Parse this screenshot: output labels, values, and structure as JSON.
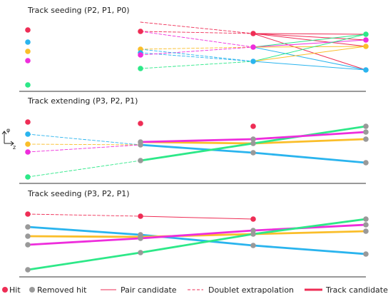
{
  "colors": {
    "red": "#ee2d55",
    "cyan": "#2ab4ee",
    "orange": "#fabe2a",
    "magenta": "#ee2ddc",
    "green": "#2de888",
    "gray": "#999999",
    "divider": "#333333"
  },
  "axis": {
    "y_label": "φ",
    "x_label": "z"
  },
  "legend": {
    "hit": "Hit",
    "removed_hit": "Removed hit",
    "pair_candidate": "Pair candidate",
    "doublet_extrapolation": "Doublet extrapolation",
    "track_candidate": "Track candidate"
  },
  "panels": [
    {
      "title": "Track seeding (P2, P1, P0)",
      "hits": [
        {
          "layer": 0,
          "color": "red"
        },
        {
          "layer": 0,
          "color": "cyan"
        },
        {
          "layer": 0,
          "color": "orange"
        },
        {
          "layer": 0,
          "color": "magenta"
        },
        {
          "layer": 0,
          "color": "green"
        },
        {
          "layer": 1,
          "color": "red"
        },
        {
          "layer": 1,
          "color": "orange"
        },
        {
          "layer": 1,
          "color": "cyan"
        },
        {
          "layer": 1,
          "color": "magenta"
        },
        {
          "layer": 1,
          "color": "green"
        },
        {
          "layer": 2,
          "color": "red"
        },
        {
          "layer": 2,
          "color": "magenta"
        },
        {
          "layer": 2,
          "color": "cyan"
        },
        {
          "layer": 3,
          "color": "green"
        },
        {
          "layer": 3,
          "color": "magenta"
        },
        {
          "layer": 3,
          "color": "orange"
        },
        {
          "layer": 3,
          "color": "cyan"
        }
      ]
    },
    {
      "title": "Track extending (P3, P2, P1)",
      "hits": [
        {
          "layer": 0,
          "color": "red"
        },
        {
          "layer": 0,
          "color": "cyan"
        },
        {
          "layer": 0,
          "color": "orange"
        },
        {
          "layer": 0,
          "color": "magenta"
        },
        {
          "layer": 0,
          "color": "green"
        },
        {
          "layer": 1,
          "color": "red"
        },
        {
          "layer": 1,
          "color": "gray"
        },
        {
          "layer": 1,
          "color": "gray"
        },
        {
          "layer": 1,
          "color": "gray"
        },
        {
          "layer": 2,
          "color": "red"
        },
        {
          "layer": 2,
          "color": "gray"
        },
        {
          "layer": 2,
          "color": "gray"
        },
        {
          "layer": 2,
          "color": "gray"
        },
        {
          "layer": 3,
          "color": "gray"
        },
        {
          "layer": 3,
          "color": "gray"
        },
        {
          "layer": 3,
          "color": "gray"
        },
        {
          "layer": 3,
          "color": "gray"
        }
      ]
    },
    {
      "title": "Track seeding (P3, P2, P1)",
      "hits": [
        {
          "layer": 0,
          "color": "red"
        },
        {
          "layer": 0,
          "color": "gray"
        },
        {
          "layer": 0,
          "color": "gray"
        },
        {
          "layer": 0,
          "color": "gray"
        },
        {
          "layer": 0,
          "color": "gray"
        },
        {
          "layer": 1,
          "color": "red"
        },
        {
          "layer": 1,
          "color": "gray"
        },
        {
          "layer": 1,
          "color": "gray"
        },
        {
          "layer": 1,
          "color": "gray"
        },
        {
          "layer": 1,
          "color": "gray"
        },
        {
          "layer": 2,
          "color": "red"
        },
        {
          "layer": 2,
          "color": "gray"
        },
        {
          "layer": 2,
          "color": "gray"
        },
        {
          "layer": 2,
          "color": "gray"
        },
        {
          "layer": 3,
          "color": "gray"
        },
        {
          "layer": 3,
          "color": "gray"
        },
        {
          "layer": 3,
          "color": "gray"
        },
        {
          "layer": 3,
          "color": "gray"
        }
      ]
    }
  ]
}
